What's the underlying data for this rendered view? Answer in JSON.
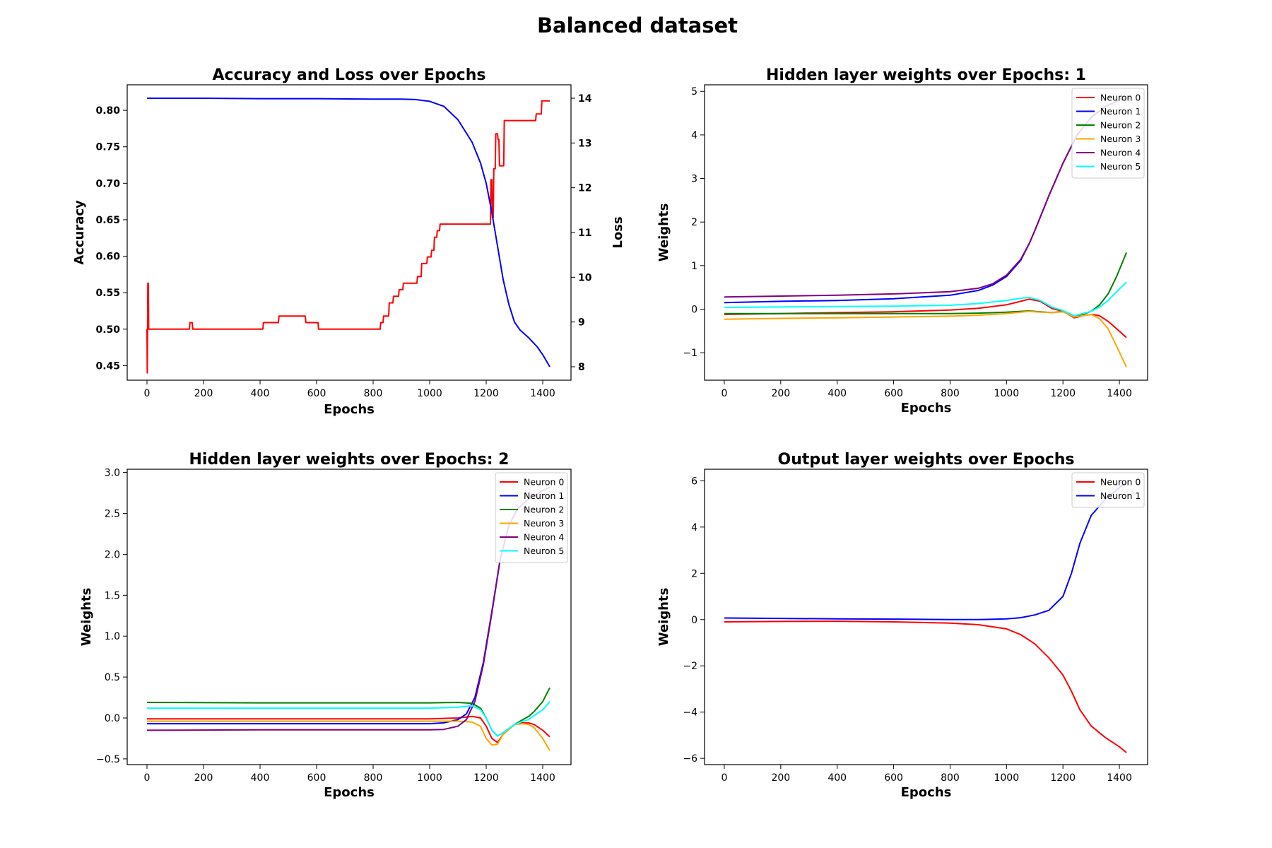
{
  "figure": {
    "title": "Balanced dataset"
  },
  "chart_data": [
    {
      "type": "line",
      "title": "Accuracy and Loss over Epochs",
      "xlabel": "Epochs",
      "ylabel": "Accuracy",
      "ylabel_right": "Loss",
      "xlim": [
        -70,
        1500
      ],
      "ylim": [
        0.43,
        0.835
      ],
      "ylim_right": [
        7.7,
        14.3
      ],
      "xticks": [
        0,
        200,
        400,
        600,
        800,
        1000,
        1200,
        1400
      ],
      "yticks": [
        0.45,
        0.5,
        0.55,
        0.6,
        0.65,
        0.7,
        0.75,
        0.8
      ],
      "yticks_right": [
        8,
        9,
        10,
        11,
        12,
        13,
        14
      ],
      "grid": false,
      "series": [
        {
          "color": "#ff0000",
          "axis": "left",
          "step": true,
          "x": [
            0,
            1,
            2,
            3,
            5,
            6,
            10,
            12,
            150,
            152,
            160,
            162,
            410,
            412,
            465,
            467,
            560,
            562,
            605,
            607,
            825,
            827,
            835,
            837,
            855,
            857,
            870,
            872,
            890,
            892,
            905,
            907,
            920,
            922,
            955,
            957,
            970,
            972,
            990,
            992,
            1005,
            1007,
            1015,
            1017,
            1025,
            1027,
            1035,
            1037,
            1045,
            1047,
            1215,
            1217,
            1220,
            1222,
            1225,
            1227,
            1232,
            1234,
            1240,
            1242,
            1245,
            1247,
            1255,
            1257,
            1262,
            1264,
            1375,
            1377,
            1395,
            1397,
            1425
          ],
          "values": [
            0.5,
            0.44,
            0.5,
            0.563,
            0.563,
            0.5,
            0.5,
            0.5,
            0.5,
            0.509,
            0.509,
            0.5,
            0.5,
            0.509,
            0.509,
            0.518,
            0.518,
            0.509,
            0.509,
            0.5,
            0.5,
            0.509,
            0.509,
            0.518,
            0.518,
            0.536,
            0.536,
            0.545,
            0.545,
            0.554,
            0.554,
            0.563,
            0.563,
            0.563,
            0.563,
            0.572,
            0.572,
            0.59,
            0.59,
            0.599,
            0.599,
            0.608,
            0.608,
            0.626,
            0.626,
            0.635,
            0.635,
            0.644,
            0.644,
            0.644,
            0.644,
            0.705,
            0.705,
            0.653,
            0.653,
            0.72,
            0.72,
            0.768,
            0.768,
            0.76,
            0.76,
            0.724,
            0.724,
            0.724,
            0.724,
            0.786,
            0.786,
            0.795,
            0.795,
            0.813,
            0.813
          ]
        },
        {
          "color": "#0000ff",
          "axis": "right",
          "x": [
            0,
            200,
            400,
            600,
            800,
            900,
            950,
            1000,
            1050,
            1100,
            1150,
            1180,
            1200,
            1220,
            1240,
            1260,
            1280,
            1300,
            1320,
            1350,
            1380,
            1400,
            1425
          ],
          "values": [
            14.0,
            14.0,
            13.99,
            13.99,
            13.98,
            13.98,
            13.97,
            13.93,
            13.82,
            13.52,
            13.02,
            12.55,
            12.1,
            11.45,
            10.7,
            9.95,
            9.4,
            9.0,
            8.82,
            8.65,
            8.45,
            8.27,
            8.0
          ]
        }
      ]
    },
    {
      "type": "line",
      "title": "Hidden layer weights over Epochs: 1",
      "xlabel": "Epochs",
      "ylabel": "Weights",
      "xlim": [
        -70,
        1500
      ],
      "ylim": [
        -1.63,
        5.15
      ],
      "xticks": [
        0,
        200,
        400,
        600,
        800,
        1000,
        1200,
        1400
      ],
      "yticks": [
        -1,
        0,
        1,
        2,
        3,
        4,
        5
      ],
      "grid": false,
      "legend": "top-right",
      "series": [
        {
          "name": "Neuron 0",
          "color": "#ff0000",
          "x": [
            0,
            200,
            400,
            600,
            800,
            900,
            1000,
            1050,
            1080,
            1120,
            1160,
            1200,
            1240,
            1270,
            1300,
            1330,
            1360,
            1390,
            1425
          ],
          "values": [
            -0.12,
            -0.1,
            -0.08,
            -0.06,
            -0.02,
            0.02,
            0.1,
            0.18,
            0.23,
            0.18,
            0.02,
            -0.05,
            -0.2,
            -0.15,
            -0.12,
            -0.15,
            -0.28,
            -0.45,
            -0.65
          ]
        },
        {
          "name": "Neuron 1",
          "color": "#0000ff",
          "x": [
            0,
            200,
            400,
            600,
            800,
            900,
            950,
            1000,
            1050,
            1080,
            1100,
            1150,
            1200,
            1250,
            1300,
            1350,
            1400,
            1425
          ],
          "values": [
            0.15,
            0.18,
            0.2,
            0.24,
            0.32,
            0.43,
            0.55,
            0.75,
            1.12,
            1.5,
            1.8,
            2.6,
            3.35,
            4.0,
            4.4,
            4.65,
            4.8,
            4.85
          ]
        },
        {
          "name": "Neuron 2",
          "color": "#008000",
          "x": [
            0,
            200,
            400,
            600,
            800,
            900,
            1000,
            1050,
            1080,
            1120,
            1160,
            1200,
            1240,
            1270,
            1300,
            1330,
            1360,
            1390,
            1425
          ],
          "values": [
            -0.1,
            -0.1,
            -0.1,
            -0.1,
            -0.1,
            -0.09,
            -0.07,
            -0.05,
            -0.04,
            -0.06,
            -0.08,
            -0.05,
            -0.15,
            -0.12,
            -0.05,
            0.1,
            0.35,
            0.75,
            1.3
          ]
        },
        {
          "name": "Neuron 3",
          "color": "#ffa500",
          "x": [
            0,
            200,
            400,
            600,
            800,
            900,
            1000,
            1050,
            1080,
            1120,
            1160,
            1200,
            1240,
            1270,
            1300,
            1330,
            1360,
            1390,
            1425
          ],
          "values": [
            -0.23,
            -0.21,
            -0.2,
            -0.18,
            -0.16,
            -0.14,
            -0.1,
            -0.07,
            -0.05,
            -0.07,
            -0.08,
            -0.06,
            -0.18,
            -0.15,
            -0.12,
            -0.22,
            -0.45,
            -0.85,
            -1.33
          ]
        },
        {
          "name": "Neuron 4",
          "color": "#800080",
          "x": [
            0,
            200,
            400,
            600,
            800,
            900,
            950,
            1000,
            1050,
            1080,
            1100,
            1150,
            1200,
            1250,
            1300,
            1350,
            1400,
            1425
          ],
          "values": [
            0.28,
            0.3,
            0.32,
            0.35,
            0.4,
            0.48,
            0.58,
            0.78,
            1.14,
            1.5,
            1.8,
            2.6,
            3.35,
            4.0,
            4.4,
            4.65,
            4.8,
            4.85
          ]
        },
        {
          "name": "Neuron 5",
          "color": "#00ffff",
          "x": [
            0,
            200,
            400,
            600,
            800,
            900,
            1000,
            1050,
            1080,
            1120,
            1160,
            1200,
            1240,
            1270,
            1300,
            1330,
            1360,
            1390,
            1425
          ],
          "values": [
            0.04,
            0.05,
            0.06,
            0.07,
            0.09,
            0.13,
            0.2,
            0.25,
            0.27,
            0.2,
            0.05,
            -0.03,
            -0.15,
            -0.1,
            -0.05,
            0.05,
            0.2,
            0.4,
            0.62
          ]
        }
      ]
    },
    {
      "type": "line",
      "title": "Hidden layer weights over Epochs: 2",
      "xlabel": "Epochs",
      "ylabel": "Weights",
      "xlim": [
        -70,
        1500
      ],
      "ylim": [
        -0.57,
        3.04
      ],
      "xticks": [
        0,
        200,
        400,
        600,
        800,
        1000,
        1200,
        1400
      ],
      "yticks": [
        -0.5,
        0.0,
        0.5,
        1.0,
        1.5,
        2.0,
        2.5,
        3.0
      ],
      "grid": false,
      "legend": "top-right",
      "series": [
        {
          "name": "Neuron 0",
          "color": "#ff0000",
          "x": [
            0,
            400,
            800,
            1000,
            1100,
            1150,
            1180,
            1200,
            1220,
            1240,
            1260,
            1300,
            1330,
            1350,
            1370,
            1400,
            1425
          ],
          "values": [
            -0.01,
            -0.01,
            -0.01,
            -0.01,
            0.0,
            0.02,
            0.0,
            -0.1,
            -0.25,
            -0.3,
            -0.2,
            -0.08,
            -0.06,
            -0.06,
            -0.08,
            -0.15,
            -0.23
          ]
        },
        {
          "name": "Neuron 1",
          "color": "#0000ff",
          "x": [
            0,
            400,
            800,
            1000,
            1050,
            1100,
            1130,
            1160,
            1190,
            1220,
            1250,
            1280,
            1310,
            1340,
            1370,
            1400,
            1425
          ],
          "values": [
            -0.07,
            -0.07,
            -0.07,
            -0.07,
            -0.06,
            -0.02,
            0.05,
            0.25,
            0.68,
            1.3,
            1.95,
            2.35,
            2.55,
            2.65,
            2.72,
            2.78,
            2.82
          ]
        },
        {
          "name": "Neuron 2",
          "color": "#008000",
          "x": [
            0,
            400,
            800,
            1000,
            1100,
            1150,
            1180,
            1200,
            1220,
            1240,
            1260,
            1300,
            1330,
            1350,
            1370,
            1400,
            1425
          ],
          "values": [
            0.19,
            0.185,
            0.185,
            0.185,
            0.19,
            0.18,
            0.12,
            0.0,
            -0.15,
            -0.22,
            -0.18,
            -0.08,
            -0.02,
            0.02,
            0.08,
            0.2,
            0.37
          ]
        },
        {
          "name": "Neuron 3",
          "color": "#ffa500",
          "x": [
            0,
            400,
            800,
            1000,
            1100,
            1150,
            1180,
            1200,
            1220,
            1240,
            1260,
            1300,
            1330,
            1350,
            1370,
            1400,
            1425
          ],
          "values": [
            -0.04,
            -0.04,
            -0.04,
            -0.04,
            -0.04,
            -0.05,
            -0.1,
            -0.25,
            -0.33,
            -0.32,
            -0.2,
            -0.08,
            -0.07,
            -0.08,
            -0.12,
            -0.25,
            -0.4
          ]
        },
        {
          "name": "Neuron 4",
          "color": "#800080",
          "x": [
            0,
            400,
            800,
            1000,
            1050,
            1100,
            1130,
            1160,
            1190,
            1220,
            1250,
            1280,
            1310,
            1340,
            1370,
            1400,
            1425
          ],
          "values": [
            -0.15,
            -0.145,
            -0.145,
            -0.145,
            -0.14,
            -0.1,
            -0.02,
            0.2,
            0.65,
            1.28,
            1.95,
            2.35,
            2.55,
            2.65,
            2.72,
            2.78,
            2.82
          ]
        },
        {
          "name": "Neuron 5",
          "color": "#00ffff",
          "x": [
            0,
            400,
            800,
            1000,
            1100,
            1150,
            1180,
            1200,
            1220,
            1240,
            1260,
            1300,
            1330,
            1350,
            1370,
            1400,
            1425
          ],
          "values": [
            0.12,
            0.12,
            0.12,
            0.12,
            0.13,
            0.15,
            0.1,
            0.0,
            -0.15,
            -0.22,
            -0.18,
            -0.08,
            -0.04,
            -0.02,
            0.03,
            0.1,
            0.2
          ]
        }
      ]
    },
    {
      "type": "line",
      "title": "Output layer weights over Epochs",
      "xlabel": "Epochs",
      "ylabel": "Weights",
      "xlim": [
        -70,
        1500
      ],
      "ylim": [
        -6.27,
        6.5
      ],
      "xticks": [
        0,
        200,
        400,
        600,
        800,
        1000,
        1200,
        1400
      ],
      "yticks": [
        -6,
        -4,
        -2,
        0,
        2,
        4,
        6
      ],
      "grid": false,
      "legend": "top-right",
      "series": [
        {
          "name": "Neuron 0",
          "color": "#ff0000",
          "x": [
            0,
            200,
            400,
            600,
            800,
            900,
            1000,
            1050,
            1100,
            1150,
            1200,
            1230,
            1260,
            1300,
            1350,
            1400,
            1425
          ],
          "values": [
            -0.1,
            -0.08,
            -0.07,
            -0.1,
            -0.15,
            -0.22,
            -0.4,
            -0.65,
            -1.05,
            -1.65,
            -2.4,
            -3.1,
            -3.9,
            -4.6,
            -5.1,
            -5.5,
            -5.75
          ]
        },
        {
          "name": "Neuron 1",
          "color": "#0000ff",
          "x": [
            0,
            200,
            400,
            600,
            800,
            900,
            1000,
            1050,
            1100,
            1150,
            1200,
            1230,
            1260,
            1300,
            1350,
            1400,
            1425
          ],
          "values": [
            0.07,
            0.05,
            0.03,
            0.02,
            0.0,
            0.0,
            0.03,
            0.08,
            0.2,
            0.4,
            1.0,
            2.0,
            3.3,
            4.5,
            5.2,
            5.7,
            5.95
          ]
        }
      ]
    }
  ]
}
